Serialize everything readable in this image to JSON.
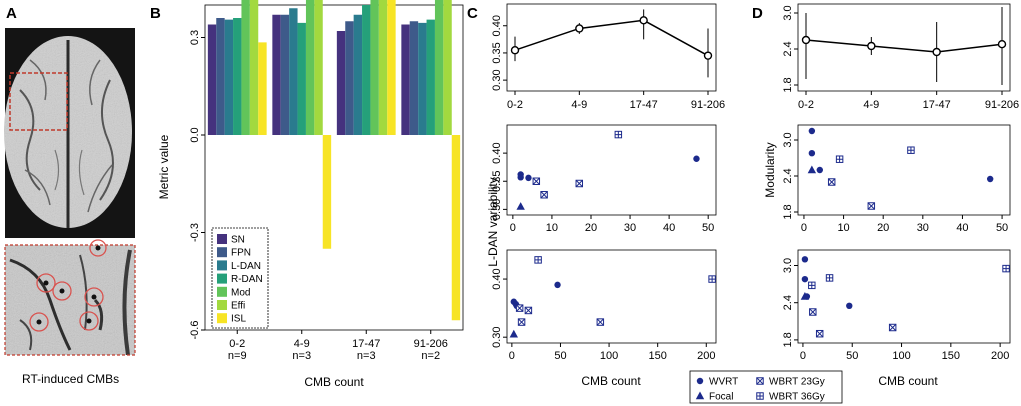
{
  "panels": {
    "a": "A",
    "b": "B",
    "c": "C",
    "d": "D"
  },
  "caption": "RT-induced CMBs",
  "colors": {
    "metric": [
      "#3b0f70",
      "#45327e",
      "#3e5a8a",
      "#2a7b8e",
      "#25a07a",
      "#62c45a",
      "#a2d93f",
      "#f7e425"
    ],
    "navy": "#1c2a8c",
    "frame_red": "#c0392b",
    "circle_red": "#d9534f"
  },
  "chart_data": [
    {
      "id": "B",
      "type": "bar",
      "ylabel": "Metric value",
      "xlabel": "CMB count",
      "ylim": [
        -0.6,
        0.4
      ],
      "yticks": [
        "0.3",
        "0.0",
        "-0.3",
        "-0.6"
      ],
      "ytick_values": [
        0.3,
        0.0,
        -0.3,
        -0.6
      ],
      "categories": [
        "0-2",
        "4-9",
        "17-47",
        "91-206"
      ],
      "n_labels": [
        "n=9",
        "n=3",
        "n=3",
        "n=2"
      ],
      "series": [
        {
          "name": "SN",
          "values": [
            0.34,
            0.37,
            0.32,
            0.34
          ]
        },
        {
          "name": "FPN",
          "values": [
            0.36,
            0.37,
            0.35,
            0.35
          ]
        },
        {
          "name": "L-DAN",
          "values": [
            0.355,
            0.39,
            0.37,
            0.345
          ]
        },
        {
          "name": "R-DAN",
          "values": [
            0.36,
            0.345,
            0.4,
            0.355
          ]
        },
        {
          "name": "Mod",
          "values": [
            0.52,
            0.5,
            0.48,
            0.49
          ]
        },
        {
          "name": "Effi",
          "values": [
            0.51,
            0.505,
            0.505,
            0.52
          ]
        },
        {
          "name": "ISL",
          "values": [
            0.285,
            -0.35,
            0.44,
            -0.57
          ]
        }
      ]
    },
    {
      "id": "C-top",
      "type": "line",
      "categories": [
        "0-2",
        "4-9",
        "17-47",
        "91-206"
      ],
      "values": [
        0.355,
        0.395,
        0.41,
        0.345
      ],
      "err_low": [
        0.335,
        0.385,
        0.375,
        0.305
      ],
      "err_high": [
        0.38,
        0.405,
        0.43,
        0.395
      ],
      "ylim": [
        0.28,
        0.44
      ],
      "yticks": [
        "0.30",
        "0.35",
        "0.40"
      ],
      "ytick_values": [
        0.3,
        0.35,
        0.4
      ]
    },
    {
      "id": "C-mid",
      "type": "scatter",
      "xlim": [
        -1.5,
        52
      ],
      "ylim": [
        0.29,
        0.45
      ],
      "xticks": [
        "0",
        "10",
        "20",
        "30",
        "40",
        "50"
      ],
      "xtick_values": [
        0,
        10,
        20,
        30,
        40,
        50
      ],
      "yticks": [
        "0.30",
        "0.35",
        "0.40"
      ],
      "ytick_values": [
        0.3,
        0.35,
        0.4
      ],
      "points": [
        {
          "x": 2,
          "y": 0.362,
          "group": "WVRT"
        },
        {
          "x": 2,
          "y": 0.357,
          "group": "WVRT"
        },
        {
          "x": 4,
          "y": 0.356,
          "group": "WVRT"
        },
        {
          "x": 47,
          "y": 0.39,
          "group": "WVRT"
        },
        {
          "x": 2,
          "y": 0.305,
          "group": "Focal"
        },
        {
          "x": 6,
          "y": 0.35,
          "group": "WBRT 23Gy"
        },
        {
          "x": 8,
          "y": 0.326,
          "group": "WBRT 23Gy"
        },
        {
          "x": 17,
          "y": 0.346,
          "group": "WBRT 23Gy"
        },
        {
          "x": 27,
          "y": 0.433,
          "group": "WBRT 36Gy"
        }
      ]
    },
    {
      "id": "C-bot",
      "type": "scatter",
      "xlabel": "CMB count",
      "xlim": [
        -5,
        210
      ],
      "ylim": [
        0.29,
        0.45
      ],
      "xticks": [
        "0",
        "50",
        "100",
        "150",
        "200"
      ],
      "xtick_values": [
        0,
        50,
        100,
        150,
        200
      ],
      "yticks": [
        "0.30",
        "0.40"
      ],
      "ytick_values": [
        0.3,
        0.4
      ],
      "points": [
        {
          "x": 2,
          "y": 0.361,
          "group": "WVRT"
        },
        {
          "x": 4,
          "y": 0.357,
          "group": "WVRT"
        },
        {
          "x": 5,
          "y": 0.354,
          "group": "WVRT"
        },
        {
          "x": 47,
          "y": 0.39,
          "group": "WVRT"
        },
        {
          "x": 2,
          "y": 0.305,
          "group": "Focal"
        },
        {
          "x": 8,
          "y": 0.35,
          "group": "WBRT 23Gy"
        },
        {
          "x": 10,
          "y": 0.326,
          "group": "WBRT 23Gy"
        },
        {
          "x": 17,
          "y": 0.346,
          "group": "WBRT 23Gy"
        },
        {
          "x": 91,
          "y": 0.326,
          "group": "WBRT 23Gy"
        },
        {
          "x": 27,
          "y": 0.433,
          "group": "WBRT 36Gy"
        },
        {
          "x": 206,
          "y": 0.4,
          "group": "WBRT 36Gy"
        }
      ]
    },
    {
      "id": "D-top",
      "type": "line",
      "categories": [
        "0-2",
        "4-9",
        "17-47",
        "91-206"
      ],
      "values": [
        2.55,
        2.45,
        2.35,
        2.48
      ],
      "err_low": [
        1.9,
        2.3,
        1.85,
        1.8
      ],
      "err_high": [
        3.0,
        2.6,
        2.85,
        3.1
      ],
      "ylim": [
        1.7,
        3.15
      ],
      "yticks": [
        "1.8",
        "2.4",
        "3.0"
      ],
      "ytick_values": [
        1.8,
        2.4,
        3.0
      ]
    },
    {
      "id": "D-mid",
      "type": "scatter",
      "ylabel": "Modularity",
      "xlim": [
        -1.5,
        52
      ],
      "ylim": [
        1.75,
        3.25
      ],
      "xticks": [
        "0",
        "10",
        "20",
        "30",
        "40",
        "50"
      ],
      "xtick_values": [
        0,
        10,
        20,
        30,
        40,
        50
      ],
      "yticks": [
        "1.8",
        "2.4",
        "3.0"
      ],
      "ytick_values": [
        1.8,
        2.4,
        3.0
      ],
      "points": [
        {
          "x": 2,
          "y": 3.15,
          "group": "WVRT"
        },
        {
          "x": 2,
          "y": 2.78,
          "group": "WVRT"
        },
        {
          "x": 4,
          "y": 2.5,
          "group": "WVRT"
        },
        {
          "x": 47,
          "y": 2.35,
          "group": "WVRT"
        },
        {
          "x": 2,
          "y": 2.5,
          "group": "Focal"
        },
        {
          "x": 7,
          "y": 2.3,
          "group": "WBRT 23Gy"
        },
        {
          "x": 17,
          "y": 1.9,
          "group": "WBRT 23Gy"
        },
        {
          "x": 9,
          "y": 2.68,
          "group": "WBRT 36Gy"
        },
        {
          "x": 27,
          "y": 2.83,
          "group": "WBRT 36Gy"
        }
      ]
    },
    {
      "id": "D-bot",
      "type": "scatter",
      "xlabel": "CMB count",
      "xlim": [
        -5,
        210
      ],
      "ylim": [
        1.75,
        3.25
      ],
      "xticks": [
        "0",
        "50",
        "100",
        "150",
        "200"
      ],
      "xtick_values": [
        0,
        50,
        100,
        150,
        200
      ],
      "yticks": [
        "1.8",
        "2.4",
        "3.0"
      ],
      "ytick_values": [
        1.8,
        2.4,
        3.0
      ],
      "points": [
        {
          "x": 2,
          "y": 3.1,
          "group": "WVRT"
        },
        {
          "x": 2,
          "y": 2.78,
          "group": "WVRT"
        },
        {
          "x": 4,
          "y": 2.5,
          "group": "WVRT"
        },
        {
          "x": 47,
          "y": 2.35,
          "group": "WVRT"
        },
        {
          "x": 2,
          "y": 2.5,
          "group": "Focal"
        },
        {
          "x": 10,
          "y": 2.25,
          "group": "WBRT 23Gy"
        },
        {
          "x": 17,
          "y": 1.9,
          "group": "WBRT 23Gy"
        },
        {
          "x": 91,
          "y": 2.0,
          "group": "WBRT 23Gy"
        },
        {
          "x": 9,
          "y": 2.68,
          "group": "WBRT 36Gy"
        },
        {
          "x": 27,
          "y": 2.8,
          "group": "WBRT 36Gy"
        },
        {
          "x": 206,
          "y": 2.95,
          "group": "WBRT 36Gy"
        }
      ]
    }
  ],
  "c_ylabel": "L-DAN variability",
  "legend_groups": [
    "WVRT",
    "WBRT 23Gy",
    "Focal",
    "WBRT 36Gy"
  ]
}
